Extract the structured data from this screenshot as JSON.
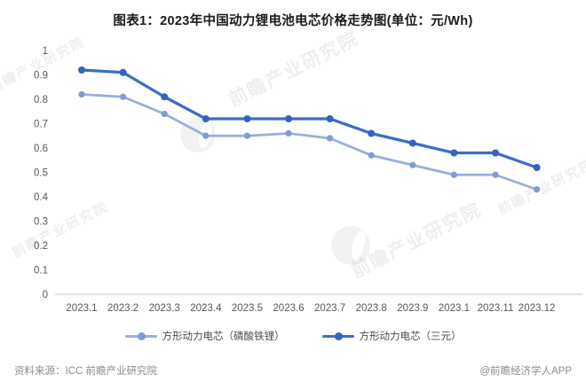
{
  "title": "图表1：2023年中国动力锂电池电芯价格走势图(单位：元/Wh)",
  "chart_data": {
    "type": "line",
    "categories": [
      "2023.1",
      "2023.2",
      "2023.3",
      "2023.4",
      "2023.5",
      "2023.6",
      "2023.7",
      "2023.8",
      "2023.9",
      "2023.1",
      "2023.11",
      "2023.12"
    ],
    "series": [
      {
        "name": "方形动力电芯（磷酸铁锂）",
        "line_color": "#98AFDF",
        "marker_color": "#7E9CD6",
        "values": [
          0.82,
          0.81,
          0.74,
          0.65,
          0.65,
          0.66,
          0.64,
          0.57,
          0.53,
          0.49,
          0.49,
          0.43
        ]
      },
      {
        "name": "方形动力电芯（三元）",
        "line_color": "#3D6DC8",
        "marker_color": "#3464C2",
        "values": [
          0.92,
          0.91,
          0.81,
          0.72,
          0.72,
          0.72,
          0.72,
          0.66,
          0.62,
          0.58,
          0.58,
          0.52
        ]
      }
    ],
    "ylim": [
      0,
      1
    ],
    "ytick_labels": [
      "0",
      "0.1",
      "0.2",
      "0.3",
      "0.4",
      "0.5",
      "0.6",
      "0.7",
      "0.8",
      "0.9",
      "1"
    ],
    "grid": false,
    "legend_position": "bottom",
    "xlabel": "",
    "ylabel": ""
  },
  "footer": {
    "source": "资料来源：ICC 前瞻产业研究院",
    "credit": "@前瞻经济学人APP"
  },
  "watermark": {
    "text": "前瞻产业研究院"
  },
  "colors": {
    "axis_line": "#d2d2d2",
    "tick_text": "#595959",
    "title_text": "#1a1a1a",
    "footer_text": "#8c8c8c"
  }
}
